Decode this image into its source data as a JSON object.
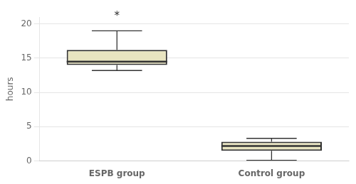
{
  "chart_data": {
    "type": "box",
    "ylabel": "hours",
    "categories": [
      "ESPB group",
      "Control group"
    ],
    "values": [
      {
        "whisker_low": 13.2,
        "q1": 14.0,
        "median": 14.5,
        "q3": 16.2,
        "whisker_high": 19.0
      },
      {
        "whisker_low": 0.1,
        "q1": 1.5,
        "median": 2.2,
        "q3": 2.8,
        "whisker_high": 3.3
      }
    ],
    "color": "#e8e4c0",
    "ylim": [
      0,
      21
    ],
    "yticks": [
      0,
      5,
      10,
      15,
      20
    ],
    "grid": true,
    "annotations": [
      {
        "text": "*",
        "x": "ESPB group",
        "y": 20.3
      }
    ]
  }
}
